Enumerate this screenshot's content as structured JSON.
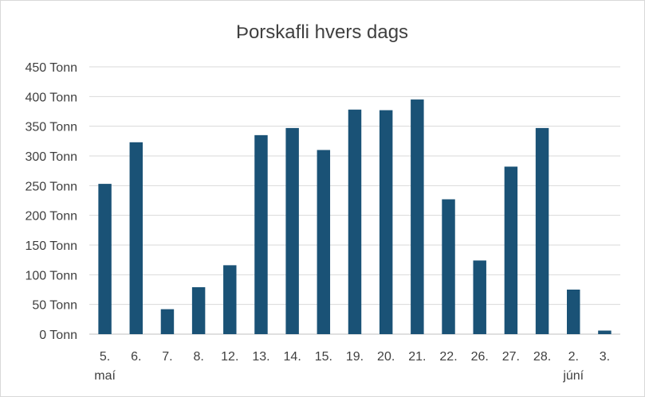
{
  "chart_data": {
    "type": "bar",
    "title": "Þorskafli hvers dags",
    "categories": [
      "5.",
      "6.",
      "7.",
      "8.",
      "12.",
      "13.",
      "14.",
      "15.",
      "19.",
      "20.",
      "21.",
      "22.",
      "26.",
      "27.",
      "28.",
      "2.",
      "3."
    ],
    "group_labels": [
      {
        "label": "maí",
        "category_index": 0
      },
      {
        "label": "júní",
        "category_index": 15
      }
    ],
    "series": [
      {
        "values": [
          253,
          323,
          42,
          79,
          116,
          335,
          347,
          310,
          378,
          377,
          395,
          227,
          124,
          282,
          347,
          75,
          6
        ]
      }
    ],
    "ylim": [
      0,
      450
    ],
    "y_ticks": [
      0,
      50,
      100,
      150,
      200,
      250,
      300,
      350,
      400,
      450
    ],
    "y_tick_suffix": " Tonn",
    "xlabel": "",
    "ylabel": "",
    "grid": true,
    "legend": "none",
    "bar_color": "#1a5276"
  }
}
